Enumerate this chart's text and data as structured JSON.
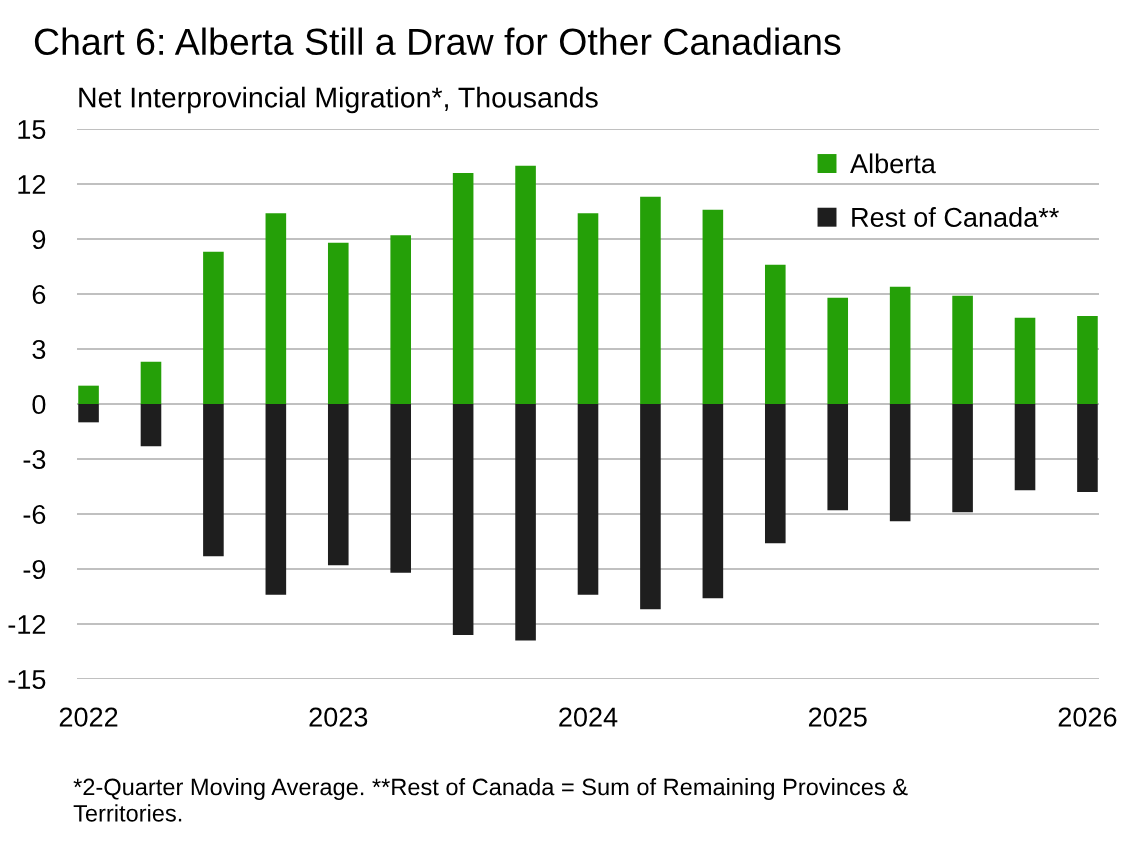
{
  "chart_data": {
    "type": "bar",
    "title": "Chart 6: Alberta Still a Draw for Other Canadians",
    "ylabel": "Net Interprovincial Migration*, Thousands",
    "categories": [
      "2022",
      null,
      null,
      null,
      "2023",
      null,
      null,
      null,
      "2024",
      null,
      null,
      null,
      "2025",
      null,
      null,
      null,
      "2026"
    ],
    "stacked": true,
    "series": [
      {
        "name": "Alberta",
        "color": "#25a008",
        "values": [
          1.0,
          2.3,
          8.3,
          10.4,
          8.8,
          9.2,
          12.6,
          13.0,
          10.4,
          11.3,
          10.6,
          7.6,
          5.8,
          6.4,
          5.9,
          4.7,
          4.8
        ]
      },
      {
        "name": "Rest of Canada**",
        "color": "#1e1e1e",
        "values": [
          -1.0,
          -2.3,
          -8.3,
          -10.4,
          -8.8,
          -9.2,
          -12.6,
          -12.9,
          -10.4,
          -11.2,
          -10.6,
          -7.6,
          -5.8,
          -6.4,
          -5.9,
          -4.7,
          -4.8
        ]
      }
    ],
    "ylim": [
      -15,
      15
    ],
    "yticks": [
      -15,
      -12,
      -9,
      -6,
      -3,
      0,
      3,
      6,
      9,
      12,
      15
    ],
    "grid": "y",
    "legend": "top right",
    "annotations": [
      "*2-Quarter Moving Average. **Rest of Canada = Sum of Remaining Provinces & Territories."
    ]
  }
}
